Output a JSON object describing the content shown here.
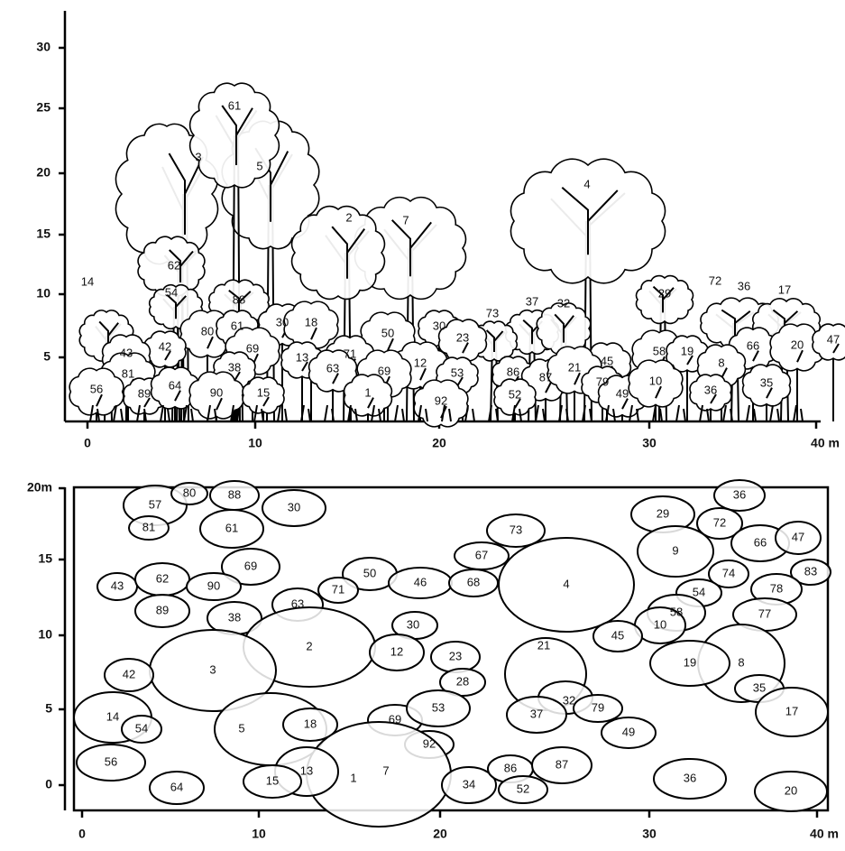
{
  "profile": {
    "y_axis_labels": [
      "30",
      "25",
      "20",
      "15",
      "10",
      "5"
    ],
    "x_axis_labels": [
      "0",
      "10",
      "20",
      "30",
      "40 m"
    ],
    "tree_labels": [
      "61",
      "3",
      "5",
      "2",
      "7",
      "4",
      "62",
      "14",
      "54",
      "88",
      "29",
      "72",
      "36",
      "17",
      "37",
      "32",
      "73",
      "80",
      "61",
      "30",
      "18",
      "42",
      "43",
      "50",
      "30",
      "23",
      "69",
      "13",
      "71",
      "12",
      "53",
      "45",
      "58",
      "19",
      "66",
      "20",
      "47",
      "8",
      "81",
      "38",
      "63",
      "69",
      "86",
      "87",
      "21",
      "79",
      "49",
      "10",
      "36",
      "35",
      "56",
      "89",
      "64",
      "90",
      "15",
      "1",
      "92",
      "52"
    ]
  },
  "plan": {
    "y_axis_labels": [
      "20m",
      "15",
      "10",
      "5",
      "0"
    ],
    "x_axis_labels": [
      "0",
      "10",
      "20",
      "30",
      "40 m"
    ],
    "crown_labels": [
      "57",
      "80",
      "88",
      "30",
      "81",
      "61",
      "73",
      "29",
      "36",
      "72",
      "66",
      "47",
      "67",
      "9",
      "69",
      "43",
      "62",
      "90",
      "50",
      "71",
      "46",
      "68",
      "4",
      "74",
      "83",
      "54",
      "78",
      "63",
      "89",
      "38",
      "77",
      "58",
      "10",
      "2",
      "30",
      "45",
      "3",
      "12",
      "21",
      "23",
      "42",
      "8",
      "19",
      "32",
      "28",
      "14",
      "54",
      "5",
      "18",
      "69",
      "53",
      "37",
      "79",
      "35",
      "17",
      "49",
      "92",
      "56",
      "7",
      "1",
      "13",
      "15",
      "34",
      "86",
      "87",
      "52",
      "64",
      "36",
      "20"
    ]
  }
}
